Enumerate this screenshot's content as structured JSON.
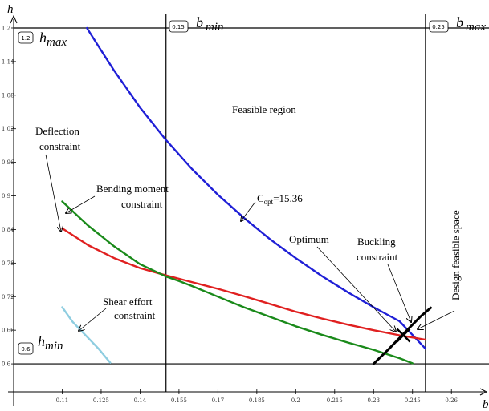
{
  "chart_data": {
    "type": "line",
    "x_label": "b",
    "y_label": "h",
    "xlim": [
      0.095,
      0.272
    ],
    "ylim": [
      0.55,
      1.21
    ],
    "x_ticks": [
      "0.11",
      "0.125",
      "0.14",
      "0.155",
      "0.17",
      "0.185",
      "0.2",
      "0.215",
      "0.23",
      "0.245",
      "0.26"
    ],
    "y_ticks": [
      "0.6",
      "0.66",
      "0.72",
      "0.78",
      "0.84",
      "0.9",
      "0.96",
      "1.02",
      "1.08",
      "1.14",
      "1.2"
    ],
    "bounds": {
      "h_max": {
        "value": 1.2,
        "box": "1.2",
        "label_main": "h",
        "label_sub": "max"
      },
      "h_min": {
        "value": 0.6,
        "box": "0.6",
        "label_main": "h",
        "label_sub": "min"
      },
      "b_min": {
        "value": 0.15,
        "box": "0.15",
        "label_main": "b",
        "label_sub": "min"
      },
      "b_max": {
        "value": 0.25,
        "box": "0.25",
        "label_main": "b",
        "label_sub": "max"
      }
    },
    "series": [
      {
        "key": "cost",
        "color": "#1f1fd6",
        "x": [
          0.1195,
          0.125,
          0.13,
          0.14,
          0.15,
          0.16,
          0.17,
          0.18,
          0.19,
          0.2,
          0.21,
          0.22,
          0.23,
          0.24,
          0.25
        ],
        "y": [
          1.2,
          1.16,
          1.124,
          1.058,
          1.0,
          0.948,
          0.902,
          0.861,
          0.823,
          0.789,
          0.757,
          0.728,
          0.701,
          0.676,
          0.627
        ]
      },
      {
        "key": "deflection",
        "color": "#e02020",
        "x": [
          0.11,
          0.12,
          0.13,
          0.14,
          0.15,
          0.155,
          0.16,
          0.17,
          0.18,
          0.19,
          0.2,
          0.21,
          0.22,
          0.23,
          0.24,
          0.25
        ],
        "y": [
          0.842,
          0.812,
          0.789,
          0.771,
          0.758,
          0.752,
          0.746,
          0.734,
          0.721,
          0.707,
          0.693,
          0.681,
          0.67,
          0.66,
          0.651,
          0.643
        ]
      },
      {
        "key": "bending",
        "color": "#1a8a1a",
        "x": [
          0.11,
          0.12,
          0.13,
          0.14,
          0.15,
          0.155,
          0.16,
          0.17,
          0.18,
          0.19,
          0.2,
          0.21,
          0.22,
          0.23,
          0.24,
          0.245
        ],
        "y": [
          0.89,
          0.847,
          0.81,
          0.778,
          0.756,
          0.748,
          0.739,
          0.72,
          0.701,
          0.684,
          0.667,
          0.652,
          0.638,
          0.625,
          0.61,
          0.601
        ]
      },
      {
        "key": "shear",
        "color": "#8ecde0",
        "x": [
          0.11,
          0.114,
          0.119,
          0.124,
          0.1285
        ],
        "y": [
          0.701,
          0.675,
          0.651,
          0.627,
          0.602
        ]
      },
      {
        "key": "buckling",
        "color": "#000000",
        "x": [
          0.23,
          0.236,
          0.242,
          0.248,
          0.252
        ],
        "y": [
          0.6,
          0.627,
          0.656,
          0.684,
          0.7
        ]
      }
    ],
    "optimum_cross": {
      "x": 0.2415,
      "y": 0.651
    },
    "annotations": {
      "feasible_region": "Feasible region",
      "deflection_1": "Deflection",
      "deflection_2": "constraint",
      "bending_1": "Bending moment",
      "bending_2": "constraint",
      "copt_main": "C",
      "copt_sub": "opt",
      "copt_value": "=15.36",
      "optimum": "Optimum",
      "buckling_1": "Buckling",
      "buckling_2": "constraint",
      "shear_1": "Shear effort",
      "shear_2": "constraint",
      "design_space": "Design feasible space"
    }
  }
}
